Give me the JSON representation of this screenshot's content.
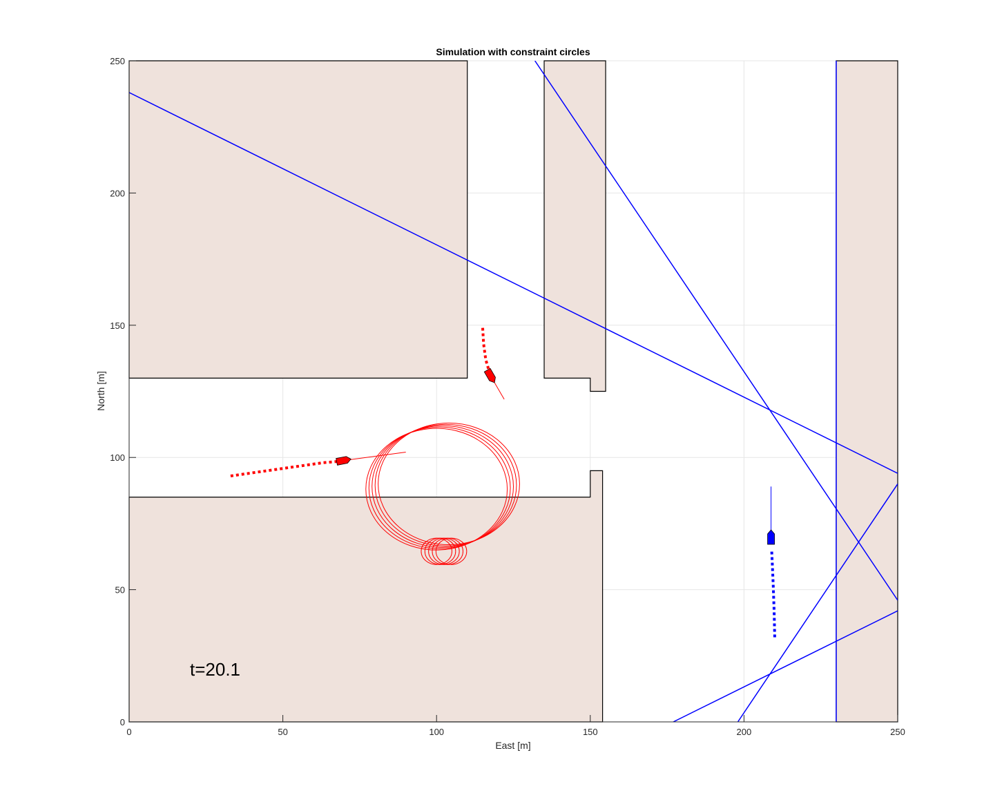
{
  "chart_data": {
    "type": "scatter",
    "title": "Simulation with constraint circles",
    "xlabel": "East [m]",
    "ylabel": "North [m]",
    "xlim": [
      0,
      250
    ],
    "ylim": [
      0,
      250
    ],
    "xticks": [
      0,
      50,
      100,
      150,
      200,
      250
    ],
    "yticks": [
      0,
      50,
      100,
      150,
      200,
      250
    ],
    "grid": true,
    "annotation": "t=20.1",
    "colors": {
      "obstacle_fill": "#efe2dc",
      "obstacle_edge": "#000000",
      "los_lines": "#0000ff",
      "own_vessel": "#ff0000",
      "target_vessel": "#0000ff",
      "grid": "#e6e6e6"
    },
    "obstacles": [
      [
        [
          0,
          130
        ],
        [
          110,
          130
        ],
        [
          110,
          250
        ],
        [
          0,
          250
        ]
      ],
      [
        [
          135,
          130
        ],
        [
          150,
          130
        ],
        [
          150,
          125
        ],
        [
          155,
          125
        ],
        [
          155,
          250
        ],
        [
          135,
          250
        ]
      ],
      [
        [
          0,
          0
        ],
        [
          154,
          0
        ],
        [
          154,
          95
        ],
        [
          150,
          95
        ],
        [
          150,
          85
        ],
        [
          0,
          85
        ]
      ],
      [
        [
          230,
          0
        ],
        [
          250,
          0
        ],
        [
          250,
          250
        ],
        [
          230,
          250
        ]
      ]
    ],
    "blue_lines": [
      [
        [
          0,
          238
        ],
        [
          250,
          94
        ]
      ],
      [
        [
          132,
          250
        ],
        [
          250,
          46
        ]
      ],
      [
        [
          230,
          0
        ],
        [
          230,
          250
        ]
      ],
      [
        [
          177,
          0
        ],
        [
          250,
          42
        ]
      ],
      [
        [
          198,
          0
        ],
        [
          250,
          90
        ]
      ]
    ],
    "red_vessels": [
      {
        "path": [
          [
            33,
            93
          ],
          [
            39,
            94
          ],
          [
            45,
            95
          ],
          [
            51,
            96
          ],
          [
            57,
            97
          ],
          [
            63,
            98
          ],
          [
            68,
            98.5
          ]
        ],
        "pos": [
          69.5,
          98.8
        ],
        "heading_deg": 79,
        "velocity_end": [
          90,
          102
        ]
      },
      {
        "path": [
          [
            115,
            149
          ],
          [
            115.3,
            143
          ],
          [
            116,
            137
          ],
          [
            117,
            133
          ]
        ],
        "pos": [
          117.5,
          131
        ],
        "heading_deg": 150,
        "velocity_end": [
          122,
          122
        ]
      }
    ],
    "blue_vessel": {
      "path": [
        [
          210,
          32
        ],
        [
          209.8,
          42
        ],
        [
          209.5,
          52
        ],
        [
          209.2,
          60
        ],
        [
          209,
          65
        ]
      ],
      "pos": [
        208.8,
        69.5
      ],
      "heading_deg": 0,
      "velocity_end": [
        208.8,
        89
      ]
    },
    "constraint_circles": [
      {
        "cx": 100,
        "cy": 88,
        "r": 23
      },
      {
        "cx": 101,
        "cy": 88.5,
        "r": 23
      },
      {
        "cx": 102,
        "cy": 89,
        "r": 23
      },
      {
        "cx": 103,
        "cy": 89.5,
        "r": 23
      },
      {
        "cx": 104,
        "cy": 90,
        "r": 23
      },
      {
        "cx": 100,
        "cy": 64.5,
        "r": 5
      },
      {
        "cx": 101.2,
        "cy": 64.5,
        "r": 5
      },
      {
        "cx": 102.4,
        "cy": 64.5,
        "r": 5
      },
      {
        "cx": 103.6,
        "cy": 64.5,
        "r": 5
      },
      {
        "cx": 104.8,
        "cy": 64.5,
        "r": 5
      }
    ]
  }
}
